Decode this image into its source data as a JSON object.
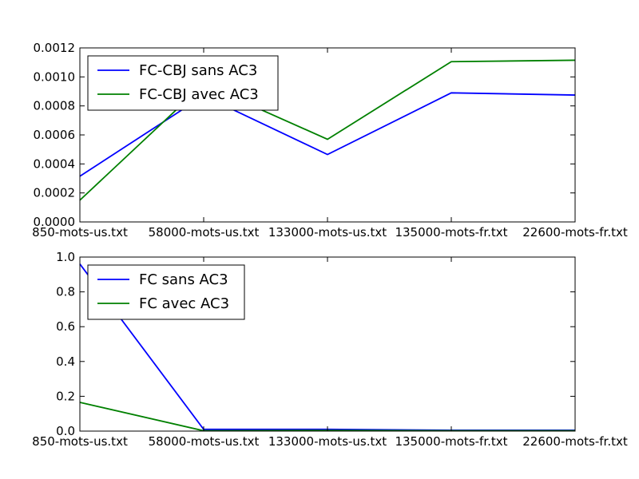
{
  "chart_data": [
    {
      "type": "line",
      "categories": [
        "850-mots-us.txt",
        "58000-mots-us.txt",
        "133000-mots-us.txt",
        "135000-mots-fr.txt",
        "22600-mots-fr.txt"
      ],
      "series": [
        {
          "name": "FC-CBJ sans AC3",
          "color": "#0000ff",
          "values": [
            0.000315,
            0.00087,
            0.000465,
            0.00089,
            0.000875
          ]
        },
        {
          "name": "FC-CBJ avec AC3",
          "color": "#008000",
          "values": [
            0.00015,
            0.00095,
            0.00057,
            0.001105,
            0.001115
          ]
        }
      ],
      "ylim": [
        0,
        0.0012
      ],
      "yticks": [
        "0.0000",
        "0.0002",
        "0.0004",
        "0.0006",
        "0.0008",
        "0.0010",
        "0.0012"
      ],
      "legend_position": "upper-left"
    },
    {
      "type": "line",
      "categories": [
        "850-mots-us.txt",
        "58000-mots-us.txt",
        "133000-mots-us.txt",
        "135000-mots-fr.txt",
        "22600-mots-fr.txt"
      ],
      "series": [
        {
          "name": "FC sans AC3",
          "color": "#0000ff",
          "values": [
            0.96,
            0.01,
            0.01,
            0.005,
            0.005
          ]
        },
        {
          "name": "FC avec AC3",
          "color": "#008000",
          "values": [
            0.165,
            0.002,
            0.004,
            0.002,
            0.002
          ]
        }
      ],
      "ylim": [
        0,
        1.0
      ],
      "yticks": [
        "0.0",
        "0.2",
        "0.4",
        "0.6",
        "0.8",
        "1.0"
      ],
      "legend_position": "upper-left"
    }
  ]
}
